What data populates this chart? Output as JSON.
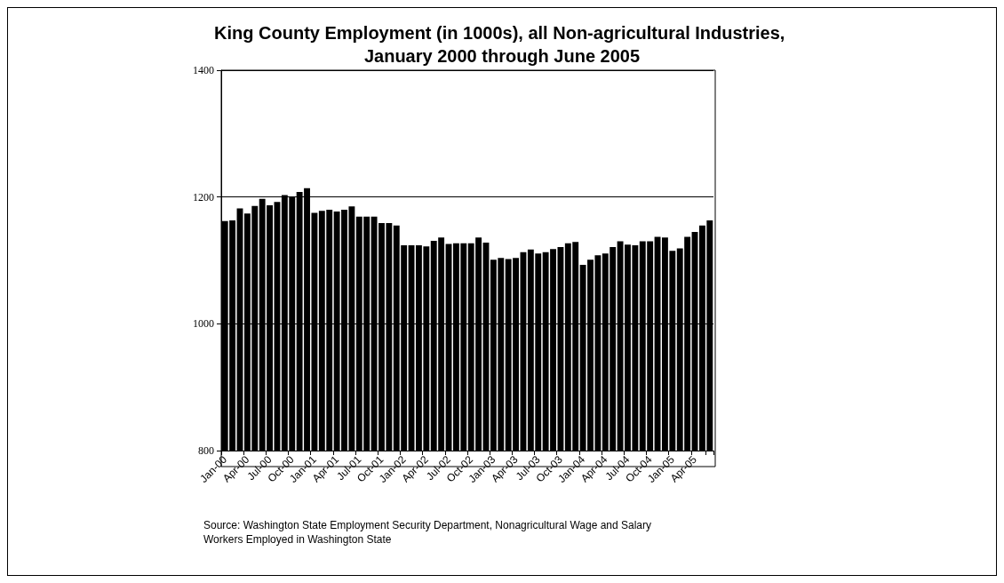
{
  "chart_data": {
    "type": "bar",
    "title": "King County Employment (in 1000s), all Non-agricultural Industries, January 2000 through June 2005",
    "categories": [
      "Jan-00",
      null,
      null,
      "Apr-00",
      null,
      null,
      "Jul-00",
      null,
      null,
      "Oct-00",
      null,
      null,
      "Jan-01",
      null,
      null,
      "Apr-01",
      null,
      null,
      "Jul-01",
      null,
      null,
      "Oct-01",
      null,
      null,
      "Jan-02",
      null,
      null,
      "Apr-02",
      null,
      null,
      "Jul-02",
      null,
      null,
      "Oct-02",
      null,
      null,
      "Jan-03",
      null,
      null,
      "Apr-03",
      null,
      null,
      "Jul-03",
      null,
      null,
      "Oct-03",
      null,
      null,
      "Jan-04",
      null,
      null,
      "Apr-04",
      null,
      null,
      "Jul-04",
      null,
      null,
      "Oct-04",
      null,
      null,
      "Jan-05",
      null,
      null,
      "Apr-05",
      null,
      null
    ],
    "values": [
      1162,
      1163,
      1182,
      1174,
      1186,
      1197,
      1187,
      1192,
      1203,
      1201,
      1208,
      1214,
      1175,
      1178,
      1180,
      1177,
      1180,
      1185,
      1169,
      1169,
      1169,
      1159,
      1159,
      1155,
      1124,
      1124,
      1124,
      1122,
      1131,
      1136,
      1126,
      1127,
      1127,
      1127,
      1136,
      1128,
      1101,
      1104,
      1102,
      1104,
      1113,
      1117,
      1111,
      1113,
      1118,
      1121,
      1127,
      1129,
      1093,
      1101,
      1108,
      1111,
      1121,
      1130,
      1125,
      1124,
      1130,
      1130,
      1137,
      1136,
      1115,
      1119,
      1137,
      1145,
      1155,
      1163
    ],
    "color": "#000000",
    "ylim": [
      800,
      1400
    ],
    "yticks": [
      800,
      1000,
      1200,
      1400
    ],
    "grid": "y",
    "annotations": [
      "Source: Washington State Employment Security Department, Nonagricultural Wage and Salary Workers Employed in Washington State"
    ]
  }
}
